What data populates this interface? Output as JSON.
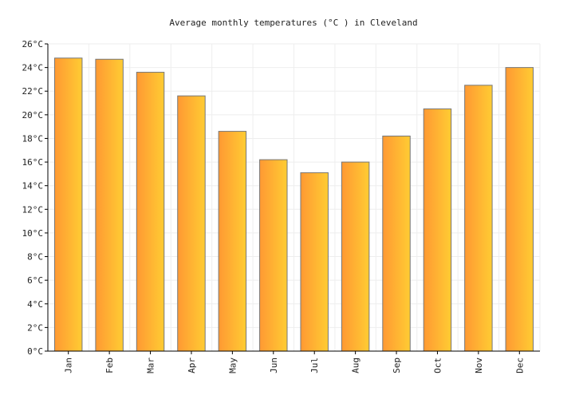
{
  "chart_data": {
    "type": "bar",
    "title": "Average monthly temperatures (°C ) in Cleveland",
    "xlabel": "",
    "ylabel": "",
    "categories": [
      "Jan",
      "Feb",
      "Mar",
      "Apr",
      "May",
      "Jun",
      "Jul",
      "Aug",
      "Sep",
      "Oct",
      "Nov",
      "Dec"
    ],
    "values": [
      24.8,
      24.7,
      23.6,
      21.6,
      18.6,
      16.2,
      15.1,
      16.0,
      18.2,
      20.5,
      22.5,
      24.0
    ],
    "ylim": [
      0,
      26
    ],
    "yticks": [
      {
        "value": 0,
        "label": "0°C"
      },
      {
        "value": 2,
        "label": "2°C"
      },
      {
        "value": 4,
        "label": "4°C"
      },
      {
        "value": 6,
        "label": "6°C"
      },
      {
        "value": 8,
        "label": "8°C"
      },
      {
        "value": 10,
        "label": "10°C"
      },
      {
        "value": 12,
        "label": "12°C"
      },
      {
        "value": 14,
        "label": "14°C"
      },
      {
        "value": 16,
        "label": "16°C"
      },
      {
        "value": 18,
        "label": "18°C"
      },
      {
        "value": 20,
        "label": "20°C"
      },
      {
        "value": 22,
        "label": "22°C"
      },
      {
        "value": 24,
        "label": "24°C"
      },
      {
        "value": 26,
        "label": "26°C"
      }
    ],
    "grid": true,
    "legend": "none",
    "colors": {
      "bar_start": "#ff9933",
      "bar_end": "#ffcc33",
      "bar_stroke": "#777777",
      "grid": "#eeeeee",
      "axis": "#000000"
    }
  }
}
